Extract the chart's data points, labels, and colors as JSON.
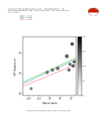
{
  "title": "R1 Source directivities (means only) -- assuming strike = 13",
  "subtitle1": "directivity model N57E  t_ave = 90.177 secs, CTR = 178.1 mb 2.084 stns",
  "subtitle2": "Chi = 0.8656",
  "legend_labels": [
    "Ctr = 0 kms",
    "Vel = 0 STD",
    "Vel = 0 STD"
  ],
  "legend_colors": [
    "#00cc00",
    "#6699ff",
    "#ff6666"
  ],
  "scatter_x": [
    -0.35,
    -0.05,
    0.05,
    0.15,
    0.32,
    0.36,
    0.38,
    0.42,
    0.44,
    0.46
  ],
  "scatter_y": [
    0.12,
    0.52,
    0.58,
    0.62,
    0.92,
    0.58,
    0.72,
    1.22,
    0.68,
    0.78
  ],
  "scatter_sizes": [
    8,
    10,
    10,
    11,
    13,
    9,
    8,
    11,
    10,
    9
  ],
  "azimuth_vals": [
    200,
    215,
    220,
    225,
    245,
    235,
    238,
    265,
    255,
    250
  ],
  "line1_x": [
    -0.5,
    0.5
  ],
  "line1_y": [
    0.28,
    0.88
  ],
  "line2_x": [
    -0.5,
    0.5
  ],
  "line2_y": [
    0.24,
    0.84
  ],
  "line3_x": [
    -0.5,
    0.5
  ],
  "line3_y": [
    0.18,
    0.72
  ],
  "xlabel": "Station (km/s)",
  "ylabel": "STF Duration (s)",
  "xlim": [
    -0.5,
    0.5
  ],
  "ylim": [
    -0.05,
    1.4
  ],
  "xticks": [
    -0.4,
    -0.2,
    0.0,
    0.2,
    0.4
  ],
  "yticks": [
    0.0,
    0.5,
    1.0
  ],
  "colorbar_min": 0,
  "colorbar_max": 360,
  "colorbar_ticks": [
    0,
    90,
    180,
    270,
    360
  ],
  "background_color": "#ffffff",
  "logo_color": "#cc2200",
  "bottom_text": "Relative STF duration vs Obs / Trup from line fit ratio"
}
